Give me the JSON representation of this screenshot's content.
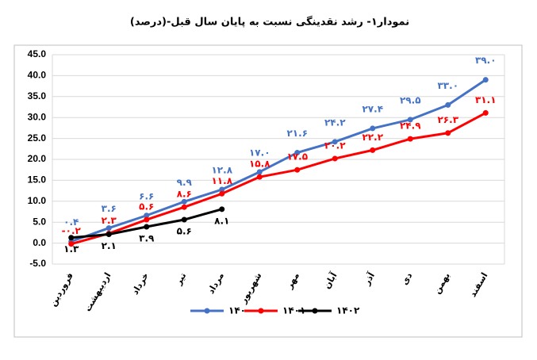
{
  "chart_data": {
    "type": "line",
    "title": "نمودار۱- رشد نقدینگی نسبت به پایان سال قبل-(درصد)",
    "categories": [
      "فروردین",
      "اردیبهشت",
      "خرداد",
      "تیر",
      "مرداد",
      "شهریور",
      "مهر",
      "آبان",
      "آذر",
      "دی",
      "بهمن",
      "اسفند"
    ],
    "series": [
      {
        "name": "۱۴۰۰",
        "color": "#4472c4",
        "values": [
          0.4,
          3.6,
          6.6,
          9.9,
          12.8,
          17.0,
          21.6,
          24.2,
          27.4,
          29.5,
          33.0,
          39.0
        ],
        "value_labels": [
          "۰.۴",
          "۳.۶",
          "۶.۶",
          "۹.۹",
          "۱۲.۸",
          "۱۷.۰",
          "۲۱.۶",
          "۲۴.۲",
          "۲۷.۴",
          "۲۹.۵",
          "۳۳.۰",
          "۳۹.۰"
        ]
      },
      {
        "name": "۱۴۰۱",
        "color": "#ff0000",
        "values": [
          -0.2,
          2.3,
          5.6,
          8.6,
          11.8,
          15.8,
          17.5,
          20.2,
          22.2,
          24.9,
          26.3,
          31.1
        ],
        "value_labels": [
          "-۰.۲",
          "۲.۳",
          "۵.۶",
          "۸.۶",
          "۱۱.۸",
          "۱۵.۸",
          "۱۷.۵",
          "۲۰.۲",
          "۲۲.۲",
          "۲۴.۹",
          "۲۶.۳",
          "۳۱.۱"
        ]
      },
      {
        "name": "۱۴۰۲",
        "color": "#000000",
        "values": [
          1.3,
          2.1,
          3.9,
          5.6,
          8.1,
          null,
          null,
          null,
          null,
          null,
          null,
          null
        ],
        "value_labels": [
          "۱.۳",
          "۲.۱",
          "۳.۹",
          "۵.۶",
          "۸.۱",
          null,
          null,
          null,
          null,
          null,
          null,
          null
        ]
      }
    ],
    "ylim": [
      -5,
      45
    ],
    "yticks": [
      {
        "value": -5,
        "label": "-5.0"
      },
      {
        "value": 0,
        "label": "0.0"
      },
      {
        "value": 5,
        "label": "5.0"
      },
      {
        "value": 10,
        "label": "10.0"
      },
      {
        "value": 15,
        "label": "15.0"
      },
      {
        "value": 20,
        "label": "20.0"
      },
      {
        "value": 25,
        "label": "25.0"
      },
      {
        "value": 30,
        "label": "30.0"
      },
      {
        "value": 35,
        "label": "35.0"
      },
      {
        "value": 40,
        "label": "40.0"
      },
      {
        "value": 45,
        "label": "45.0"
      }
    ],
    "grid": true,
    "legend": "bottom"
  }
}
